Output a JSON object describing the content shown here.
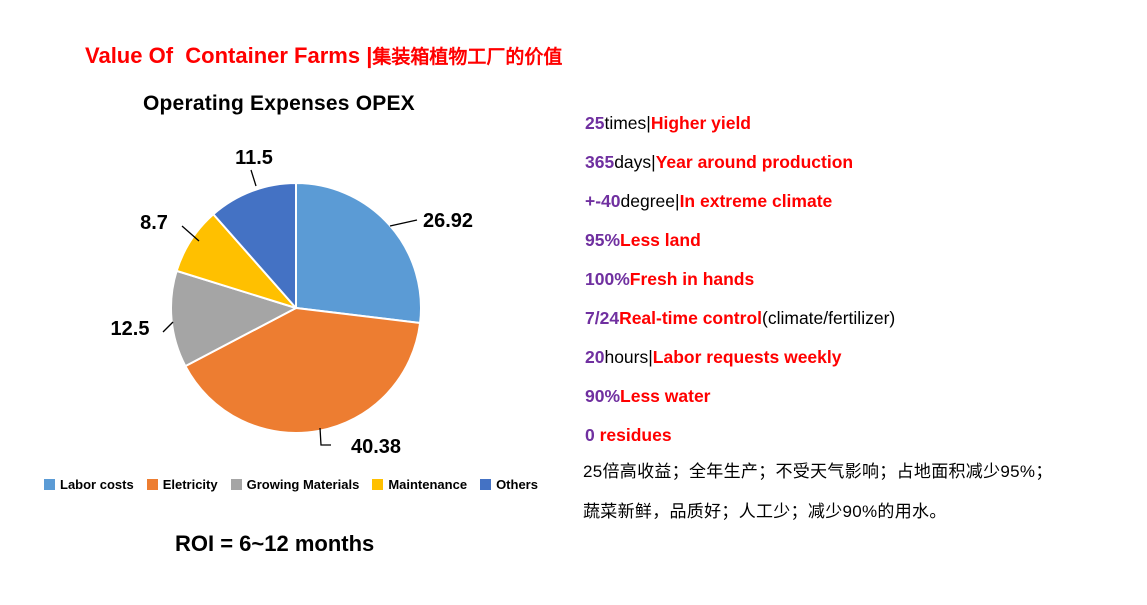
{
  "title": {
    "en": "Value Of  Container Farms |",
    "zh": "集装箱植物工厂的价值"
  },
  "chart_data": {
    "type": "pie",
    "title": "Operating Expenses OPEX",
    "categories": [
      "Labor costs",
      "Eletricity",
      "Growing Materials",
      "Maintenance",
      "Others"
    ],
    "values": [
      26.92,
      40.38,
      12.5,
      8.7,
      11.5
    ],
    "colors": [
      "#5B9BD5",
      "#ED7D31",
      "#A5A5A5",
      "#FFC000",
      "#4472C4"
    ],
    "legend_position": "bottom",
    "start_angle_deg": 0,
    "direction": "clockwise",
    "data_labels": "outside-end"
  },
  "roi_text": "ROI = 6~12 months",
  "benefits": [
    {
      "value": "25",
      "unit": "times|",
      "text": "Higher yield"
    },
    {
      "value": "365",
      "unit": "days|",
      "text": "Year around production"
    },
    {
      "value": "+-40",
      "unit": "degree|",
      "text": "In extreme climate"
    },
    {
      "value": "95%",
      "unit": "",
      "text": "Less land"
    },
    {
      "value": "100%",
      "unit": "",
      "text": "Fresh in hands"
    },
    {
      "value": "7/24",
      "unit": "",
      "text": "Real-time control",
      "suffix": "(climate/fertilizer)"
    },
    {
      "value": "20",
      "unit": "hours|",
      "text": "Labor requests weekly"
    },
    {
      "value": "90%",
      "unit": "",
      "text": "Less water"
    },
    {
      "value": "0",
      "unit": " ",
      "text": "residues"
    }
  ],
  "summary_zh": [
    "25倍高收益；全年生产；不受天气影响；占地面积减少95%；",
    "蔬菜新鲜，品质好；人工少；减少90%的用水。"
  ],
  "palette": {
    "accent_red": "#FF0000",
    "accent_purple": "#7030A0",
    "text_black": "#000000",
    "background": "#FFFFFF"
  }
}
